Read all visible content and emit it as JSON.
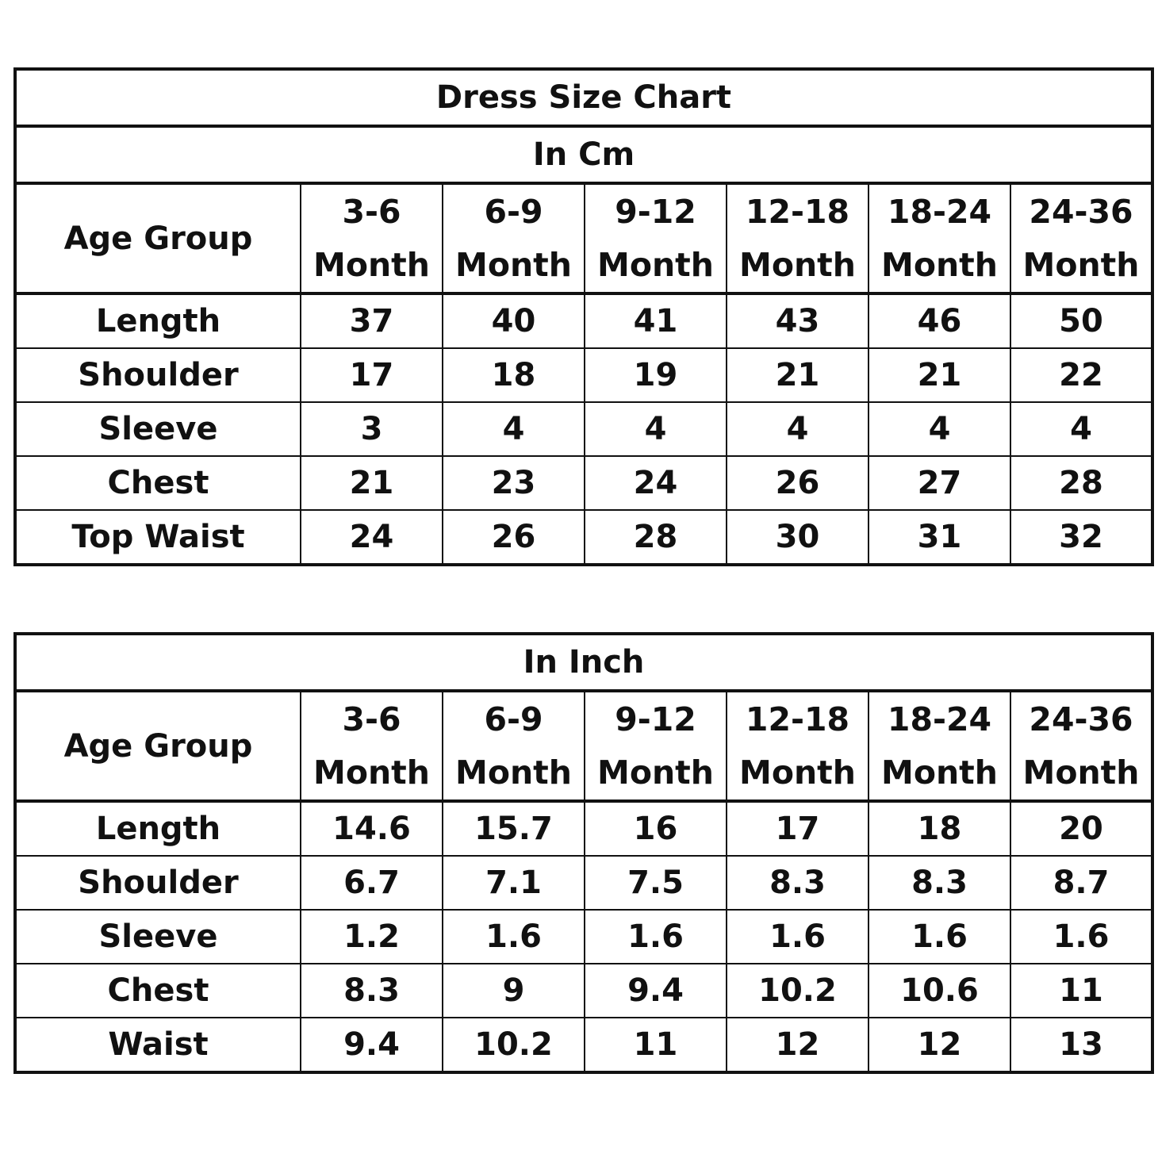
{
  "title": "Dress Size Chart",
  "tables": [
    {
      "caption": "In Cm",
      "header_label": "Age Group",
      "columns": [
        {
          "range": "3-6",
          "unit": "Month"
        },
        {
          "range": "6-9",
          "unit": "Month"
        },
        {
          "range": "9-12",
          "unit": "Month"
        },
        {
          "range": "12-18",
          "unit": "Month"
        },
        {
          "range": "18-24",
          "unit": "Month"
        },
        {
          "range": "24-36",
          "unit": "Month"
        }
      ],
      "rows": [
        {
          "label": "Length",
          "values": [
            "37",
            "40",
            "41",
            "43",
            "46",
            "50"
          ]
        },
        {
          "label": "Shoulder",
          "values": [
            "17",
            "18",
            "19",
            "21",
            "21",
            "22"
          ]
        },
        {
          "label": "Sleeve",
          "values": [
            "3",
            "4",
            "4",
            "4",
            "4",
            "4"
          ]
        },
        {
          "label": "Chest",
          "values": [
            "21",
            "23",
            "24",
            "26",
            "27",
            "28"
          ]
        },
        {
          "label": "Top Waist",
          "values": [
            "24",
            "26",
            "28",
            "30",
            "31",
            "32"
          ]
        }
      ]
    },
    {
      "caption": "In Inch",
      "header_label": "Age Group",
      "columns": [
        {
          "range": "3-6",
          "unit": "Month"
        },
        {
          "range": "6-9",
          "unit": "Month"
        },
        {
          "range": "9-12",
          "unit": "Month"
        },
        {
          "range": "12-18",
          "unit": "Month"
        },
        {
          "range": "18-24",
          "unit": "Month"
        },
        {
          "range": "24-36",
          "unit": "Month"
        }
      ],
      "rows": [
        {
          "label": "Length",
          "values": [
            "14.6",
            "15.7",
            "16",
            "17",
            "18",
            "20"
          ]
        },
        {
          "label": "Shoulder",
          "values": [
            "6.7",
            "7.1",
            "7.5",
            "8.3",
            "8.3",
            "8.7"
          ]
        },
        {
          "label": "Sleeve",
          "values": [
            "1.2",
            "1.6",
            "1.6",
            "1.6",
            "1.6",
            "1.6"
          ]
        },
        {
          "label": "Chest",
          "values": [
            "8.3",
            "9",
            "9.4",
            "10.2",
            "10.6",
            "11"
          ]
        },
        {
          "label": "Waist",
          "values": [
            "9.4",
            "10.2",
            "11",
            "12",
            "12",
            "13"
          ]
        }
      ]
    }
  ]
}
